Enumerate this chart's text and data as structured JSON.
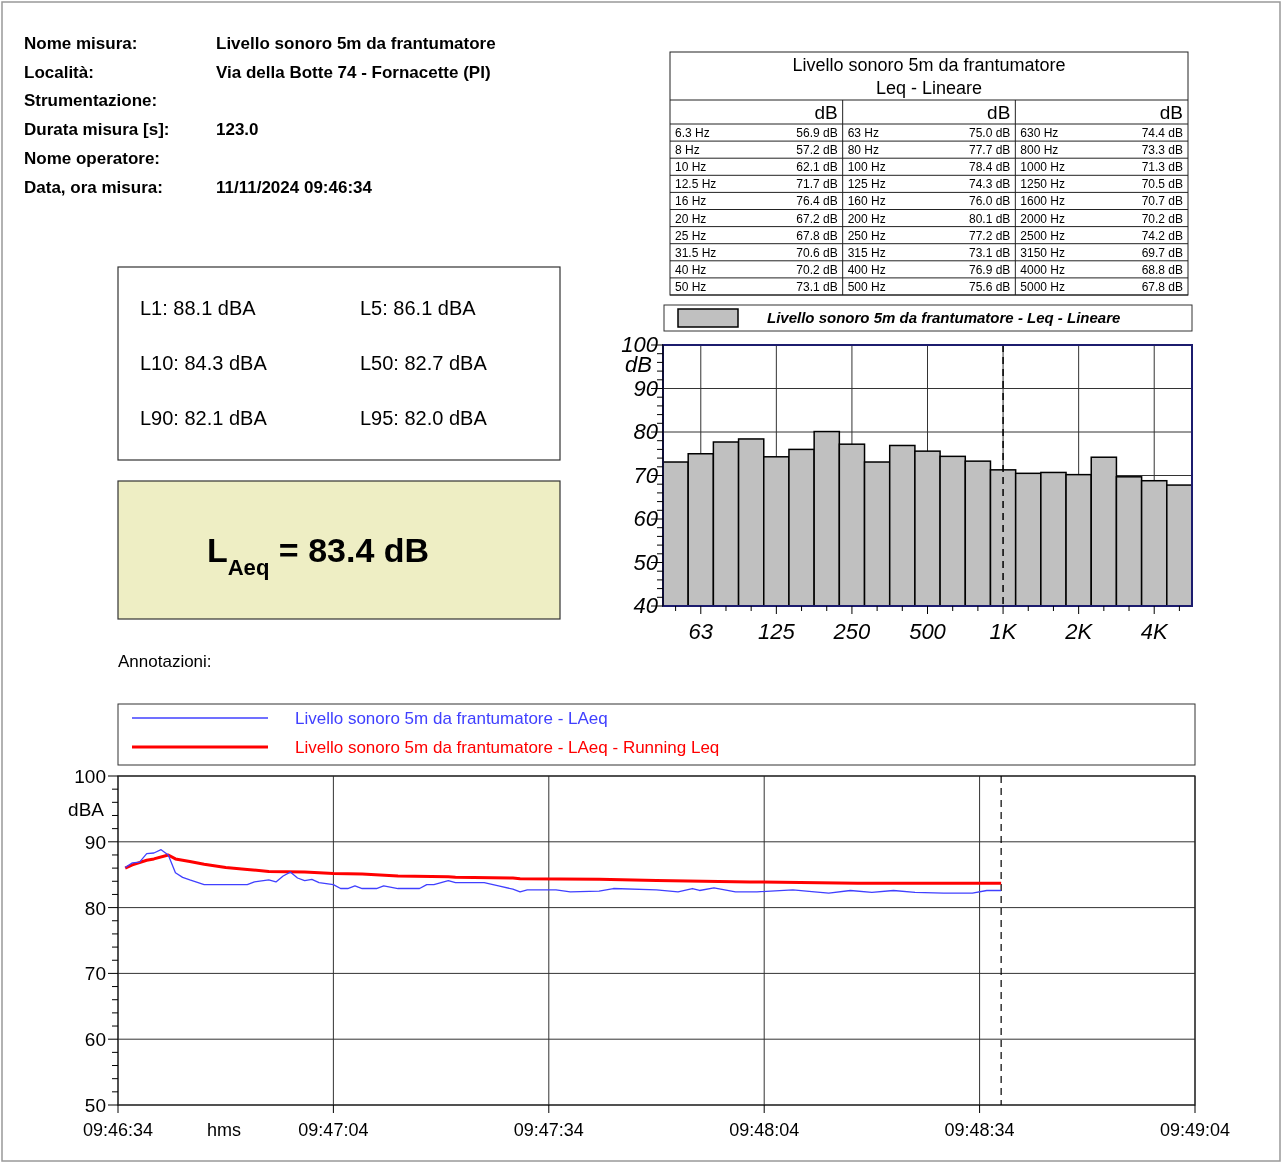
{
  "chart_data": [
    {
      "type": "other",
      "annotations": [
        "Nome misura:",
        "Livello sonoro 5m da frantumatore",
        "Località:",
        "Via della Botte 74 - Fornacette (PI)",
        "Strumentazione:",
        null,
        "Durata misura [s]:",
        "123.0",
        "Nome operatore:",
        null,
        "Data, ora misura:",
        "11/11/2024    09:46:34"
      ]
    },
    {
      "type": "other",
      "title": "Livello sonoro 5m da frantumatore",
      "subtitle": "Leq - Lineare",
      "annotations": [
        "dB",
        "dB",
        "dB",
        "6.3 Hz",
        "56.9 dB",
        "8 Hz",
        "57.2 dB",
        "10 Hz",
        "62.1 dB",
        "12.5 Hz",
        "71.7 dB",
        "16 Hz",
        "76.4 dB",
        "20 Hz",
        "67.2 dB",
        "25 Hz",
        "67.8 dB",
        "31.5 Hz",
        "70.6 dB",
        "40 Hz",
        "70.2 dB",
        "50 Hz",
        "73.1 dB",
        "63 Hz",
        "75.0 dB",
        "80 Hz",
        "77.7 dB",
        "100 Hz",
        "78.4 dB",
        "125 Hz",
        "74.3 dB",
        "160 Hz",
        "76.0 dB",
        "200 Hz",
        "80.1 dB",
        "250 Hz",
        "77.2 dB",
        "315 Hz",
        "73.1 dB",
        "400 Hz",
        "76.9 dB",
        "500 Hz",
        "75.6 dB",
        "630 Hz",
        "74.4 dB",
        "800 Hz",
        "73.3 dB",
        "1000 Hz",
        "71.3 dB",
        "1250 Hz",
        "70.5 dB",
        "1600 Hz",
        "70.7 dB",
        "2000 Hz",
        "70.2 dB",
        "2500 Hz",
        "74.2 dB",
        "3150 Hz",
        "69.7 dB",
        "4000 Hz",
        "68.8 dB",
        "5000 Hz",
        "67.8 dB"
      ]
    },
    {
      "type": "other",
      "annotations": [
        "L1: 88.1 dBA",
        "L5: 86.1 dBA",
        "L10: 84.3 dBA",
        "L50: 82.7 dBA",
        "L90: 82.1 dBA",
        "L95: 82.0 dBA",
        "L$_{Aeq}$ = 83.4 dB",
        "Annotazioni:"
      ]
    },
    {
      "type": "bar",
      "ylabel": "dB",
      "legend": "top",
      "grid": true,
      "categories": [
        null,
        "63",
        null,
        null,
        "125",
        null,
        null,
        "250",
        null,
        null,
        "500",
        null,
        null,
        "1K",
        null,
        null,
        "2K",
        null,
        null,
        "4K",
        null
      ],
      "series": [
        {
          "name": "Livello sonoro 5m da frantumatore - Leq - Lineare",
          "color": "#c0c0c0",
          "values": [
            73.1,
            75.0,
            77.7,
            78.4,
            74.3,
            76.0,
            80.1,
            77.2,
            73.1,
            76.9,
            75.6,
            74.4,
            73.3,
            71.3,
            70.5,
            70.7,
            70.2,
            74.2,
            69.7,
            68.8,
            67.8
          ]
        }
      ],
      "ylim": [
        40,
        100
      ],
      "yticks": [
        40,
        {
          "value": 42,
          "label": null
        },
        {
          "value": 44,
          "label": null
        },
        {
          "value": 46,
          "label": null
        },
        {
          "value": 48,
          "label": null
        },
        50,
        {
          "value": 52,
          "label": null
        },
        {
          "value": 54,
          "label": null
        },
        {
          "value": 56,
          "label": null
        },
        {
          "value": 58,
          "label": null
        },
        60,
        {
          "value": 62,
          "label": null
        },
        {
          "value": 64,
          "label": null
        },
        {
          "value": 66,
          "label": null
        },
        {
          "value": 68,
          "label": null
        },
        70,
        {
          "value": 72,
          "label": null
        },
        {
          "value": 74,
          "label": null
        },
        {
          "value": 76,
          "label": null
        },
        {
          "value": 78,
          "label": null
        },
        80,
        {
          "value": 82,
          "label": null
        },
        {
          "value": 84,
          "label": null
        },
        {
          "value": 86,
          "label": null
        },
        {
          "value": 88,
          "label": null
        },
        90,
        {
          "value": 92,
          "label": null
        },
        {
          "value": 94,
          "label": null
        },
        {
          "value": 96,
          "label": null
        },
        {
          "value": 98,
          "label": null
        },
        100
      ],
      "ref_lines": [
        {
          "axis": "x",
          "value": "1K",
          "color": "#000000",
          "line_style": "dashed"
        }
      ]
    },
    {
      "type": "line",
      "xlabel": "hms",
      "ylabel": "dBA",
      "legend": "top",
      "grid": true,
      "xlim": [
        9.776111,
        9.817778
      ],
      "xticks": [
        {
          "value": 9.776111,
          "label": "09:46:34"
        },
        {
          "value": 9.784444,
          "label": "09:47:04"
        },
        {
          "value": 9.792778,
          "label": "09:47:34"
        },
        {
          "value": 9.801111,
          "label": "09:48:04"
        },
        {
          "value": 9.809444,
          "label": "09:48:34"
        },
        {
          "value": 9.817778,
          "label": "09:49:04"
        }
      ],
      "ylim": [
        50,
        100
      ],
      "yticks": [
        50,
        {
          "value": 52,
          "label": null
        },
        {
          "value": 54,
          "label": null
        },
        {
          "value": 56,
          "label": null
        },
        {
          "value": 58,
          "label": null
        },
        60,
        {
          "value": 62,
          "label": null
        },
        {
          "value": 64,
          "label": null
        },
        {
          "value": 66,
          "label": null
        },
        {
          "value": 68,
          "label": null
        },
        70,
        {
          "value": 72,
          "label": null
        },
        {
          "value": 74,
          "label": null
        },
        {
          "value": 76,
          "label": null
        },
        {
          "value": 78,
          "label": null
        },
        80,
        {
          "value": 82,
          "label": null
        },
        {
          "value": 84,
          "label": null
        },
        {
          "value": 86,
          "label": null
        },
        {
          "value": 88,
          "label": null
        },
        90,
        {
          "value": 92,
          "label": null
        },
        {
          "value": 94,
          "label": null
        },
        {
          "value": 96,
          "label": null
        },
        {
          "value": 98,
          "label": null
        },
        100
      ],
      "series": [
        {
          "name": "Livello sonoro 5m da frantumatore - LAeq",
          "color": "#4040ff",
          "x": [
            9.776389,
            9.776667,
            9.776944,
            9.777222,
            9.7775,
            9.777778,
            9.778056,
            9.778333,
            9.778611,
            9.778889,
            9.779444,
            9.781111,
            9.781389,
            9.781944,
            9.782222,
            9.7825,
            9.782778,
            9.783056,
            9.783333,
            9.783611,
            9.783889,
            9.784444,
            9.784722,
            9.785,
            9.785278,
            9.785556,
            9.786111,
            9.786389,
            9.786944,
            9.787778,
            9.788056,
            9.788333,
            9.788889,
            9.789167,
            9.790278,
            9.790833,
            9.791389,
            9.791667,
            9.791944,
            9.793056,
            9.793611,
            9.794722,
            9.795278,
            9.796944,
            9.797778,
            9.798333,
            9.798611,
            9.799167,
            9.8,
            9.800833,
            9.802222,
            9.803056,
            9.803611,
            9.804444,
            9.805278,
            9.806111,
            9.806944,
            9.808056,
            9.809167,
            9.809722,
            9.810278
          ],
          "values": [
            86.1,
            86.8,
            86.9,
            88.2,
            88.3,
            88.8,
            88.0,
            85.3,
            84.6,
            84.2,
            83.5,
            83.5,
            83.9,
            84.2,
            83.9,
            84.8,
            85.4,
            84.5,
            84.1,
            84.3,
            83.8,
            83.5,
            82.9,
            82.9,
            83.3,
            82.9,
            82.9,
            83.3,
            82.9,
            82.9,
            83.5,
            83.5,
            84.1,
            83.8,
            83.8,
            83.3,
            82.8,
            82.4,
            82.7,
            82.7,
            82.4,
            82.5,
            82.9,
            82.7,
            82.4,
            82.9,
            82.6,
            83.0,
            82.4,
            82.4,
            82.7,
            82.4,
            82.2,
            82.6,
            82.3,
            82.6,
            82.3,
            82.2,
            82.2,
            82.6,
            82.6
          ]
        },
        {
          "name": "Livello sonoro 5m da frantumatore - LAeq - Running Leq",
          "color": "#ff0000",
          "x": [
            9.776389,
            9.776667,
            9.777222,
            9.7775,
            9.778056,
            9.778333,
            9.778889,
            9.779444,
            9.780278,
            9.781111,
            9.781944,
            9.783333,
            9.784444,
            9.785556,
            9.786944,
            9.788889,
            9.789167,
            9.791389,
            9.791667,
            9.794722,
            9.796944,
            9.800556,
            9.804722,
            9.810278
          ],
          "values": [
            86.0,
            86.5,
            87.2,
            87.4,
            88.0,
            87.4,
            87.0,
            86.6,
            86.1,
            85.8,
            85.5,
            85.4,
            85.2,
            85.1,
            84.8,
            84.7,
            84.6,
            84.5,
            84.4,
            84.3,
            84.1,
            83.9,
            83.7,
            83.7
          ]
        }
      ],
      "ref_lines": [
        {
          "axis": "x",
          "value": 9.810278,
          "color": "#000000",
          "line_style": "dashed"
        }
      ]
    }
  ]
}
